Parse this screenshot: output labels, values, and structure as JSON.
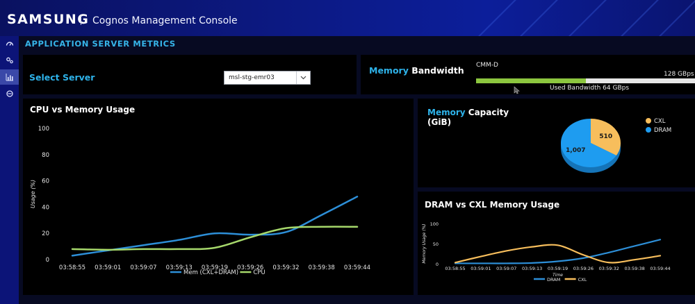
{
  "header": {
    "brand": "SAMSUNG",
    "app_title": "Cognos Management Console"
  },
  "sidebar": {
    "items": [
      {
        "icon": "dashboard-icon"
      },
      {
        "icon": "settings-icon"
      },
      {
        "icon": "bar-chart-icon",
        "active": true
      },
      {
        "icon": "circle-icon"
      }
    ]
  },
  "page": {
    "title": "APPLICATION SERVER METRICS"
  },
  "server_select": {
    "label": "Select Server",
    "value": "msl-stg-emr03"
  },
  "bandwidth": {
    "title_accent": "Memory",
    "title_rest": " Bandwidth",
    "device": "CMM-D",
    "max_label": "128 GBps",
    "used_label": "Used Bandwidth 64 GBps",
    "fill_fraction": 0.5,
    "fill_color": "#8cc63f"
  },
  "capacity": {
    "title_accent": "Memory",
    "title_rest": " Capacity",
    "subtitle": "(GiB)"
  },
  "cpu_chart_title": "CPU vs Memory Usage",
  "dram_chart_title": "DRAM vs CXL Memory Usage",
  "chart_data": [
    {
      "type": "line",
      "title": "CPU vs Memory Usage",
      "xlabel": "",
      "ylabel": "Usage (%)",
      "ylim": [
        0,
        100
      ],
      "yticks": [
        0,
        20,
        40,
        60,
        80,
        100
      ],
      "categories": [
        "03:58:55",
        "03:59:01",
        "03:59:07",
        "03:59:13",
        "03:59:19",
        "03:59:26",
        "03:59:32",
        "03:59:38",
        "03:59:44"
      ],
      "series": [
        {
          "name": "Mem (CXL+DRAM)",
          "color": "#2d8fd8",
          "values": [
            3,
            7,
            11,
            15,
            20,
            19,
            21,
            34,
            48
          ]
        },
        {
          "name": "CPU",
          "color": "#a6d86b",
          "values": [
            8,
            7.5,
            8,
            8,
            9,
            17,
            24,
            25,
            25
          ]
        }
      ]
    },
    {
      "type": "pie",
      "title": "Memory Capacity (GiB)",
      "slices": [
        {
          "name": "CXL",
          "value": 510,
          "color": "#f7be5c"
        },
        {
          "name": "DRAM",
          "value": 1007,
          "color": "#1e9cf0"
        }
      ],
      "slice_labels": [
        "510",
        "1,007"
      ],
      "legend_position": "right"
    },
    {
      "type": "line",
      "title": "DRAM vs CXL Memory Usage",
      "xlabel": "Time",
      "ylabel": "Memory Usage (%)",
      "ylim": [
        0,
        100
      ],
      "yticks": [
        0,
        50,
        100
      ],
      "categories": [
        "03:58:55",
        "03:59:01",
        "03:59:07",
        "03:59:13",
        "03:59:19",
        "03:59:26",
        "03:59:32",
        "03:59:38",
        "03:59:44"
      ],
      "series": [
        {
          "name": "DRAM",
          "color": "#2d8fd8",
          "values": [
            1,
            1,
            1,
            2,
            6,
            14,
            28,
            44,
            60
          ]
        },
        {
          "name": "CXL",
          "color": "#f7be5c",
          "values": [
            3,
            18,
            32,
            42,
            46,
            22,
            3,
            10,
            20
          ]
        }
      ]
    }
  ]
}
